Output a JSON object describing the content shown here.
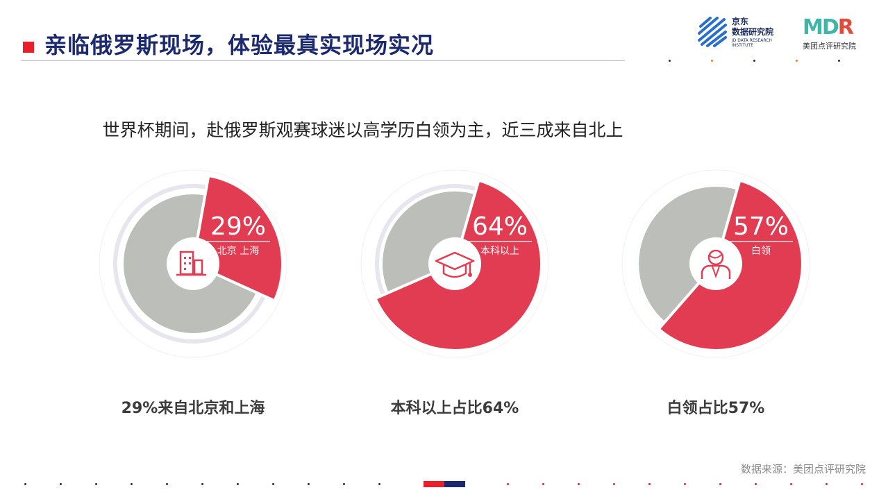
{
  "header": {
    "title": "亲临俄罗斯现场，体验最真实现场实况",
    "logo_jd": {
      "name_line1": "京东",
      "name_line2": "数据研究院",
      "english": "JD DATA RESEARCH INSTITUTE"
    },
    "logo_mdr": {
      "mark_md": "MD",
      "mark_r": "R",
      "name": "美团点评研究院"
    }
  },
  "subtitle": "世界杯期间，赴俄罗斯观赛球迷以高学历白领为主，近三成来自北上",
  "chart_data": [
    {
      "type": "pie",
      "slices": [
        {
          "label": "北京 上海",
          "value": 29
        },
        {
          "label": "",
          "value": 71
        }
      ],
      "value_label": "29%",
      "category_label": "北京 上海",
      "icon": "city-buildings-icon",
      "caption": "29%来自北京和上海"
    },
    {
      "type": "pie",
      "slices": [
        {
          "label": "本科以上",
          "value": 64
        },
        {
          "label": "",
          "value": 36
        }
      ],
      "value_label": "64%",
      "category_label": "本科以上",
      "icon": "graduation-cap-icon",
      "caption": "本科以上占比64%"
    },
    {
      "type": "pie",
      "slices": [
        {
          "label": "白领",
          "value": 57
        },
        {
          "label": "",
          "value": 43
        }
      ],
      "value_label": "57%",
      "category_label": "白领",
      "icon": "white-collar-person-icon",
      "caption": "白领占比57%"
    }
  ],
  "colors": {
    "highlight": "#e23c52",
    "rest": "#bcbeba",
    "ring": "#e7e6ef",
    "title": "#1b2a6e",
    "accent": "#e8202a"
  },
  "footer": {
    "source": "数据来源：美团点评研究院"
  }
}
